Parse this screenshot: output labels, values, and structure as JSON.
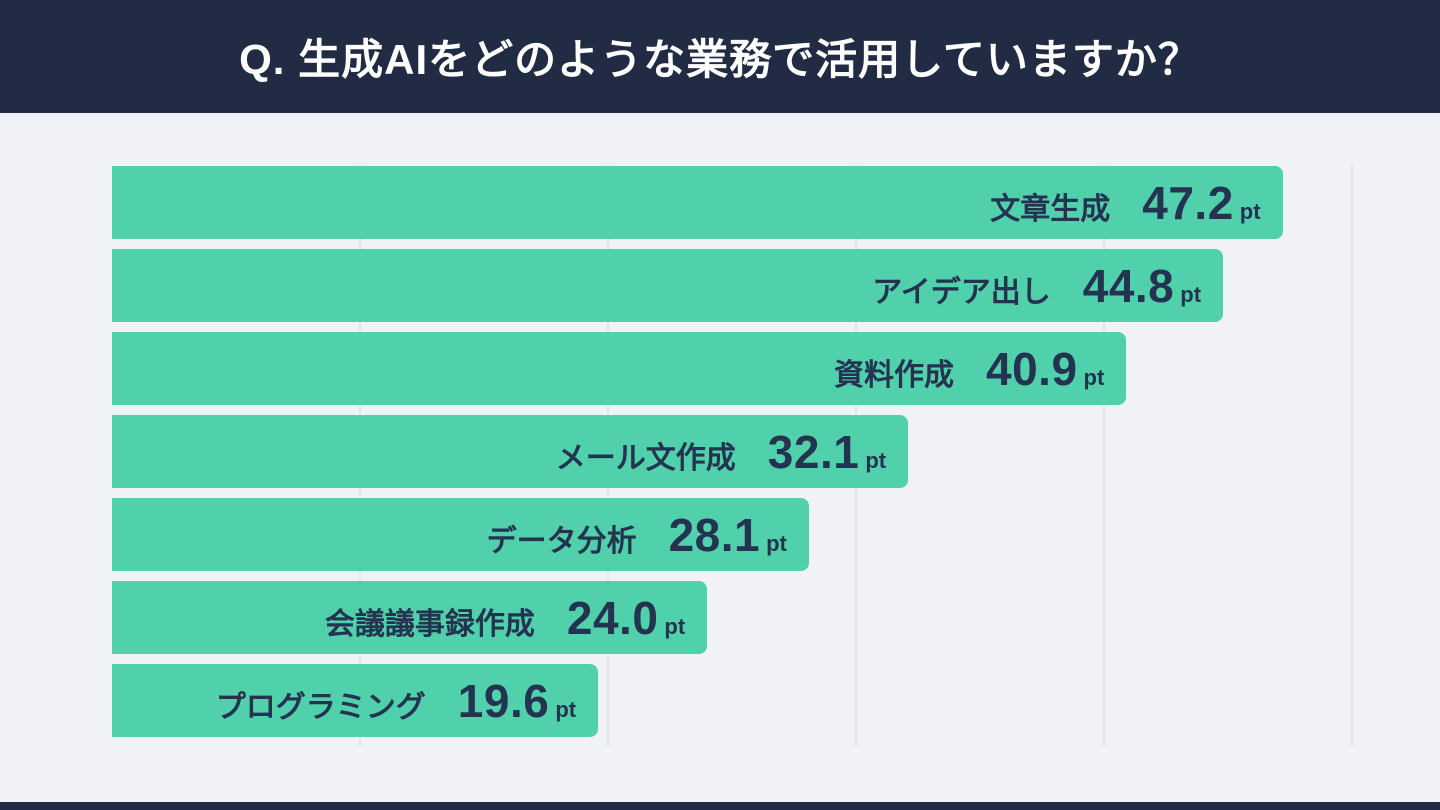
{
  "header": {
    "title": "Q. 生成AIをどのような業務で活用していますか？",
    "bg_color": "#212C44",
    "text_color": "#FFFFFF"
  },
  "chart_data": {
    "type": "bar",
    "orientation": "horizontal",
    "title": "Q. 生成AIをどのような業務で活用していますか？",
    "categories": [
      "文章生成",
      "アイデア出し",
      "資料作成",
      "メール文作成",
      "データ分析",
      "会議議事録作成",
      "プログラミング"
    ],
    "values": [
      47.2,
      44.8,
      40.9,
      32.1,
      28.1,
      24.0,
      19.6
    ],
    "display_values": [
      "47.2",
      "44.8",
      "40.9",
      "32.1",
      "28.1",
      "24.0",
      "19.6"
    ],
    "unit": "pt",
    "xlim": [
      0,
      50
    ],
    "gridline_values": [
      10,
      20,
      30,
      40,
      50
    ],
    "legend": "none",
    "grid": "vertical",
    "bar_color": "#50D1AC",
    "label_color": "#243350",
    "grid_color": "#E2E4EA",
    "background_color": "#F0F2F6"
  }
}
